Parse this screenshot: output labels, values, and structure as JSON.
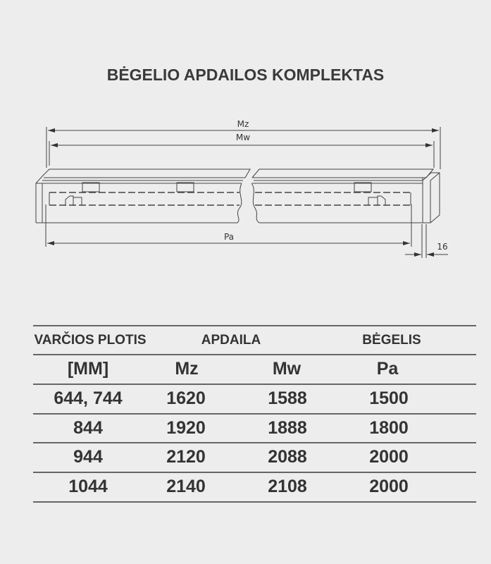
{
  "title": "BĖGELIO APDAILOS KOMPLEKTAS",
  "diagram": {
    "label_mz": "Mz",
    "label_mw": "Mw",
    "label_pa": "Pa",
    "label_16": "16"
  },
  "table": {
    "header1": [
      "VARČIOS PLOTIS",
      "APDAILA",
      "BĖGELIS"
    ],
    "header2": [
      "[MM]",
      "Mz",
      "Mw",
      "Pa"
    ],
    "rows": [
      [
        "644, 744",
        "1620",
        "1588",
        "1500"
      ],
      [
        "844",
        "1920",
        "1888",
        "1800"
      ],
      [
        "944",
        "2120",
        "2088",
        "2000"
      ],
      [
        "1044",
        "2140",
        "2108",
        "2000"
      ]
    ]
  }
}
